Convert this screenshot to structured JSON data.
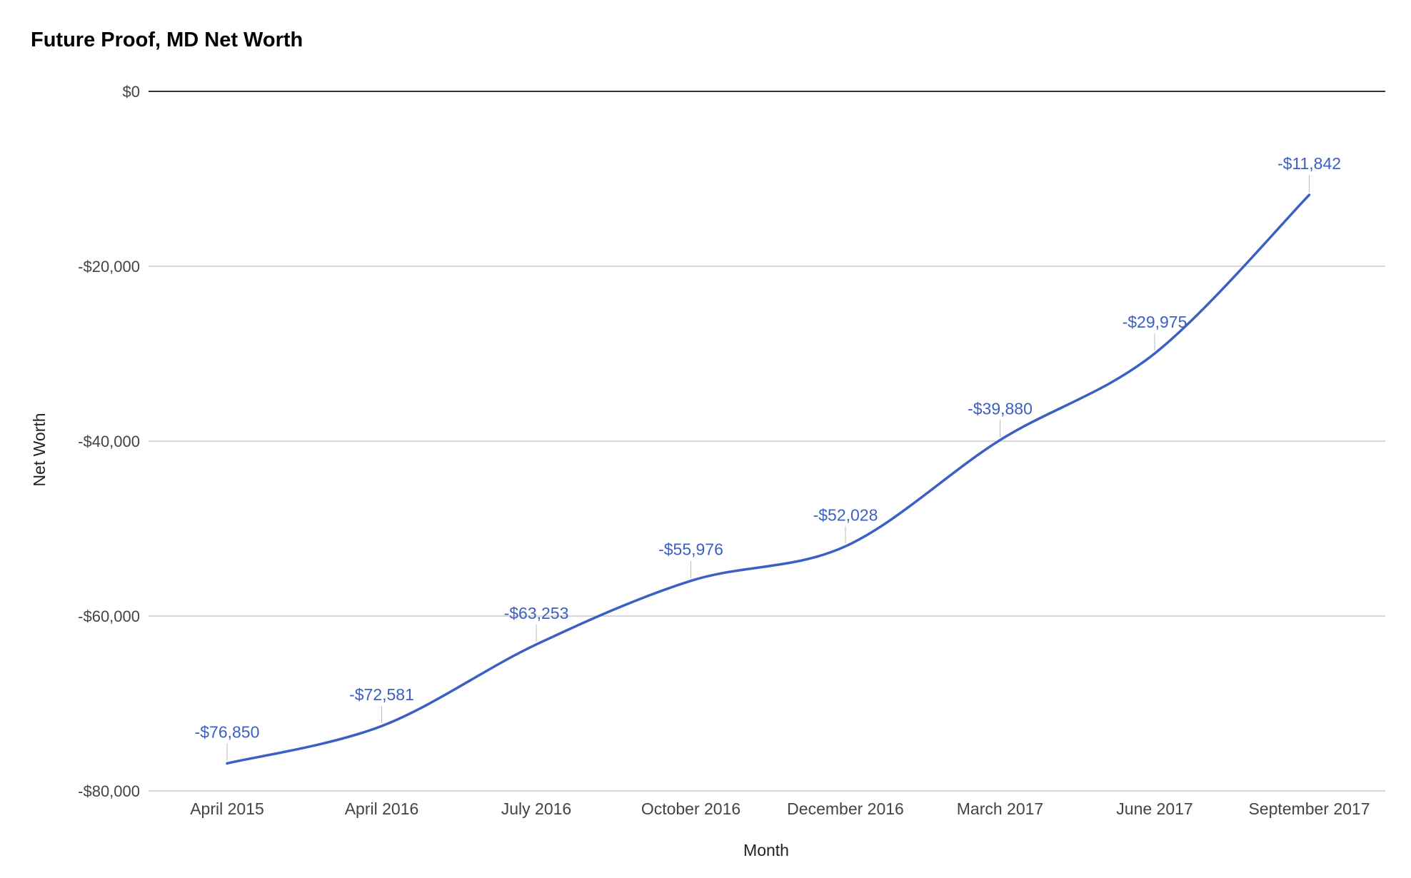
{
  "chart_data": {
    "type": "line",
    "title": "Future Proof, MD Net Worth",
    "xlabel": "Month",
    "ylabel": "Net Worth",
    "categories": [
      "April 2015",
      "April 2016",
      "July 2016",
      "October 2016",
      "December 2016",
      "March 2017",
      "June 2017",
      "September 2017"
    ],
    "series": [
      {
        "name": "Net Worth",
        "values": [
          -76850,
          -72581,
          -63253,
          -55976,
          -52028,
          -39880,
          -29975,
          -11842
        ],
        "labels": [
          "-$76,850",
          "-$72,581",
          "-$63,253",
          "-$55,976",
          "-$52,028",
          "-$39,880",
          "-$29,975",
          "-$11,842"
        ],
        "color": "#3b60c4"
      }
    ],
    "ylim": [
      -80000,
      0
    ],
    "yticks": [
      0,
      -20000,
      -40000,
      -60000,
      -80000
    ],
    "ytick_labels": [
      "$0",
      "-$20,000",
      "-$40,000",
      "-$60,000",
      "-$80,000"
    ],
    "grid": true,
    "legend": "none",
    "colors": {
      "line": "#3b60c4",
      "label": "#3b60c4",
      "gridline": "#cccccc",
      "zero_line": "#333333",
      "axis_text": "#444444"
    }
  }
}
